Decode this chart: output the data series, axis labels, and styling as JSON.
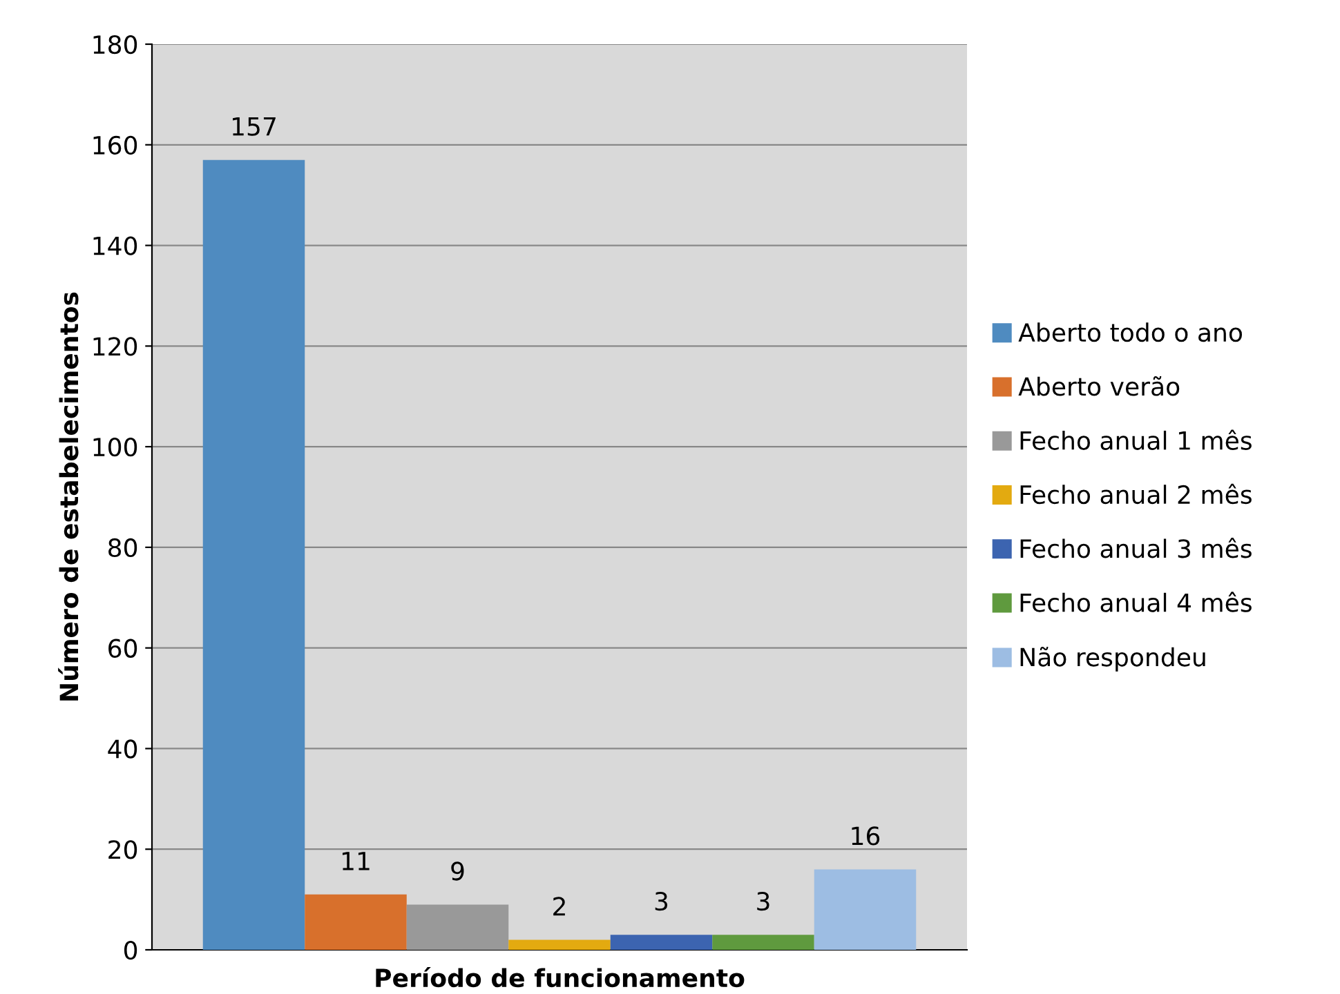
{
  "chart_data": {
    "type": "bar",
    "xlabel": "Período de funcionamento",
    "ylabel": "Número de estabelecimentos",
    "categories": [
      null
    ],
    "series": [
      {
        "name": "Aberto todo o ano",
        "color": "#4f8bc0",
        "values": [
          157
        ]
      },
      {
        "name": "Aberto verão",
        "color": "#d8702c",
        "values": [
          11
        ]
      },
      {
        "name": "Fecho anual 1 mês",
        "color": "#999999",
        "values": [
          9
        ]
      },
      {
        "name": "Fecho anual 2 mês",
        "color": "#e3aa10",
        "values": [
          2
        ]
      },
      {
        "name": "Fecho anual 3 mês",
        "color": "#3c64b0",
        "values": [
          3
        ]
      },
      {
        "name": "Fecho anual 4 mês",
        "color": "#5f9a3e",
        "values": [
          3
        ]
      },
      {
        "name": "Não respondeu",
        "color": "#9dbde3",
        "values": [
          16
        ]
      }
    ],
    "ylim": [
      0,
      180
    ],
    "yticks": [
      0,
      20,
      40,
      60,
      80,
      100,
      120,
      140,
      160,
      180
    ],
    "grid": "y",
    "legend": "right",
    "data_labels": true
  }
}
